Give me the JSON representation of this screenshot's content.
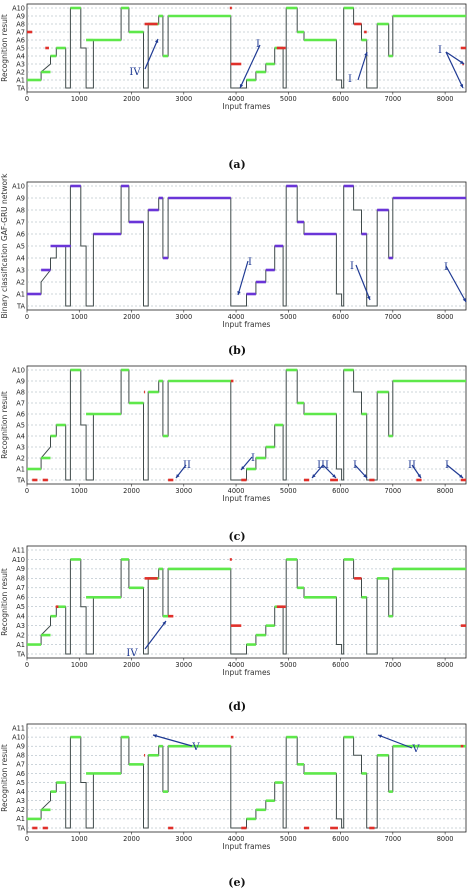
{
  "chart_data": [
    {
      "type": "line",
      "caption": "(a)",
      "ylabel": "Recognition result",
      "xlabel": "Input frames",
      "ylim_labels": [
        "TA",
        "A1",
        "A2",
        "A3",
        "A4",
        "A5",
        "A6",
        "A7",
        "A8",
        "A9",
        "A10"
      ],
      "xticks": [
        0,
        1000,
        2000,
        3000,
        4000,
        5000,
        6000,
        7000,
        8000
      ],
      "xlim": [
        0,
        8400
      ],
      "ground_truth": [
        [
          0,
          1
        ],
        [
          270,
          1
        ],
        [
          270,
          2
        ],
        [
          450,
          3
        ],
        [
          450,
          4
        ],
        [
          560,
          4
        ],
        [
          560,
          5
        ],
        [
          740,
          5
        ],
        [
          740,
          0
        ],
        [
          830,
          0
        ],
        [
          830,
          10
        ],
        [
          1030,
          10
        ],
        [
          1030,
          5
        ],
        [
          1130,
          5
        ],
        [
          1130,
          0
        ],
        [
          1270,
          0
        ],
        [
          1270,
          6
        ],
        [
          1800,
          6
        ],
        [
          1800,
          10
        ],
        [
          1950,
          10
        ],
        [
          1950,
          7
        ],
        [
          2230,
          7
        ],
        [
          2230,
          0
        ],
        [
          2320,
          0
        ],
        [
          2320,
          8
        ],
        [
          2520,
          8
        ],
        [
          2520,
          9
        ],
        [
          2600,
          9
        ],
        [
          2600,
          4
        ],
        [
          2700,
          4
        ],
        [
          2700,
          9
        ],
        [
          3900,
          9
        ],
        [
          3900,
          0
        ],
        [
          4200,
          0
        ],
        [
          4200,
          1
        ],
        [
          4380,
          1
        ],
        [
          4380,
          2
        ],
        [
          4570,
          2
        ],
        [
          4570,
          3
        ],
        [
          4740,
          3
        ],
        [
          4740,
          5
        ],
        [
          4900,
          5
        ],
        [
          4900,
          0
        ],
        [
          4960,
          0
        ],
        [
          4960,
          10
        ],
        [
          5170,
          10
        ],
        [
          5170,
          7
        ],
        [
          5300,
          7
        ],
        [
          5300,
          6
        ],
        [
          5920,
          6
        ],
        [
          5920,
          1
        ],
        [
          6020,
          1
        ],
        [
          6020,
          0
        ],
        [
          6060,
          0
        ],
        [
          6060,
          10
        ],
        [
          6250,
          10
        ],
        [
          6250,
          8
        ],
        [
          6400,
          8
        ],
        [
          6400,
          6
        ],
        [
          6500,
          6
        ],
        [
          6500,
          0
        ],
        [
          6700,
          0
        ],
        [
          6700,
          8
        ],
        [
          6920,
          8
        ],
        [
          6920,
          4
        ],
        [
          7000,
          4
        ],
        [
          7000,
          9
        ],
        [
          8400,
          9
        ]
      ],
      "predicted": [
        [
          0,
          270,
          1
        ],
        [
          270,
          450,
          2
        ],
        [
          450,
          560,
          4
        ],
        [
          560,
          740,
          5
        ],
        [
          830,
          1030,
          10
        ],
        [
          1130,
          1270,
          6
        ],
        [
          1270,
          1800,
          6
        ],
        [
          1800,
          1950,
          10
        ],
        [
          1950,
          2230,
          7
        ],
        [
          2320,
          2520,
          8
        ],
        [
          2520,
          2600,
          9
        ],
        [
          2600,
          2700,
          4
        ],
        [
          2700,
          3900,
          9
        ],
        [
          4200,
          4380,
          1
        ],
        [
          4380,
          4570,
          2
        ],
        [
          4570,
          4740,
          3
        ],
        [
          4740,
          4900,
          5
        ],
        [
          4960,
          5170,
          10
        ],
        [
          5170,
          5300,
          7
        ],
        [
          5300,
          5920,
          6
        ],
        [
          6060,
          6250,
          10
        ],
        [
          6400,
          6500,
          6
        ],
        [
          6700,
          6920,
          8
        ],
        [
          6920,
          7000,
          4
        ],
        [
          7000,
          8400,
          9
        ]
      ],
      "errors": [
        [
          0,
          100,
          7
        ],
        [
          350,
          420,
          5
        ],
        [
          2250,
          2500,
          8
        ],
        [
          3880,
          3920,
          10
        ],
        [
          3900,
          4100,
          3
        ],
        [
          4780,
          4950,
          5
        ],
        [
          6260,
          6400,
          8
        ],
        [
          6450,
          6500,
          7
        ],
        [
          8300,
          8400,
          5
        ],
        [
          8330,
          8360,
          3
        ]
      ],
      "annotations": [
        "IV",
        "I",
        "I",
        "I"
      ]
    },
    {
      "type": "line",
      "caption": "(b)",
      "ylabel": "Binary classification GAF-GRU network",
      "xlabel": "Input frames",
      "ylim_labels": [
        "TA",
        "A1",
        "A2",
        "A3",
        "A4",
        "A5",
        "A6",
        "A7",
        "A8",
        "A9",
        "A10"
      ],
      "xticks": [
        0,
        1000,
        2000,
        3000,
        4000,
        5000,
        6000,
        7000,
        8000
      ],
      "xlim": [
        0,
        8400
      ],
      "predicted_color": "#6a35d8",
      "predicted": [
        [
          0,
          270,
          1
        ],
        [
          270,
          450,
          3
        ],
        [
          450,
          840,
          5
        ],
        [
          830,
          1030,
          10
        ],
        [
          1270,
          1800,
          6
        ],
        [
          1800,
          1950,
          10
        ],
        [
          1950,
          2230,
          7
        ],
        [
          2320,
          2520,
          8
        ],
        [
          2520,
          2600,
          9
        ],
        [
          2600,
          2700,
          4
        ],
        [
          2700,
          3900,
          9
        ],
        [
          4200,
          4380,
          1
        ],
        [
          4380,
          4570,
          2
        ],
        [
          4570,
          4740,
          3
        ],
        [
          4740,
          4900,
          5
        ],
        [
          4960,
          5170,
          10
        ],
        [
          5170,
          5300,
          7
        ],
        [
          5300,
          5920,
          6
        ],
        [
          6060,
          6250,
          10
        ],
        [
          6400,
          6500,
          6
        ],
        [
          6700,
          6920,
          8
        ],
        [
          6920,
          7000,
          4
        ],
        [
          7000,
          8400,
          9
        ]
      ],
      "annotations": [
        "I",
        "I",
        "I"
      ]
    },
    {
      "type": "line",
      "caption": "(c)",
      "ylabel": "Recognition result",
      "xlabel": "Input frames",
      "ylim_labels": [
        "TA",
        "A1",
        "A2",
        "A3",
        "A4",
        "A5",
        "A6",
        "A7",
        "A8",
        "A9",
        "A10"
      ],
      "xticks": [
        0,
        1000,
        2000,
        3000,
        4000,
        5000,
        6000,
        7000,
        8000
      ],
      "xlim": [
        0,
        8400
      ],
      "errors": [
        [
          100,
          200,
          0
        ],
        [
          300,
          400,
          0
        ],
        [
          2700,
          2800,
          0
        ],
        [
          4100,
          4200,
          0
        ],
        [
          5300,
          5400,
          0
        ],
        [
          5800,
          5950,
          0
        ],
        [
          6550,
          6650,
          0
        ],
        [
          7450,
          7550,
          0
        ],
        [
          8300,
          8400,
          0
        ],
        [
          3900,
          3950,
          9
        ],
        [
          2240,
          2260,
          8
        ]
      ],
      "annotations": [
        "II",
        "I",
        "III",
        "I",
        "II",
        "I"
      ]
    },
    {
      "type": "line",
      "caption": "(d)",
      "ylabel": "Recognition result",
      "xlabel": "Input frames",
      "ylim_labels": [
        "TA",
        "A1",
        "A2",
        "A3",
        "A4",
        "A5",
        "A6",
        "A7",
        "A8",
        "A9",
        "A10",
        "A11"
      ],
      "xticks": [
        0,
        1000,
        2000,
        3000,
        4000,
        5000,
        6000,
        7000,
        8000
      ],
      "xlim": [
        0,
        8400
      ],
      "errors": [
        [
          2250,
          2500,
          8
        ],
        [
          3880,
          3920,
          10
        ],
        [
          3900,
          4100,
          3
        ],
        [
          4780,
          4950,
          5
        ],
        [
          6260,
          6400,
          8
        ],
        [
          8300,
          8400,
          3
        ],
        [
          550,
          600,
          5
        ],
        [
          2700,
          2800,
          4
        ]
      ],
      "annotations": [
        "IV"
      ]
    },
    {
      "type": "line",
      "caption": "(e)",
      "ylabel": "Recognition result",
      "xlabel": "Input frames",
      "ylim_labels": [
        "TA",
        "A1",
        "A2",
        "A3",
        "A4",
        "A5",
        "A6",
        "A7",
        "A8",
        "A9",
        "A10",
        "A11"
      ],
      "xticks": [
        0,
        1000,
        2000,
        3000,
        4000,
        5000,
        6000,
        7000,
        8000
      ],
      "xlim": [
        0,
        8400
      ],
      "errors": [
        [
          100,
          200,
          0
        ],
        [
          300,
          400,
          0
        ],
        [
          2700,
          2800,
          0
        ],
        [
          4100,
          4200,
          0
        ],
        [
          5300,
          5400,
          0
        ],
        [
          5800,
          5950,
          0
        ],
        [
          6550,
          6650,
          0
        ],
        [
          3900,
          3950,
          10
        ],
        [
          2240,
          2260,
          8
        ],
        [
          8300,
          8350,
          9
        ]
      ],
      "annotations": [
        "V",
        "V"
      ]
    }
  ],
  "colors": {
    "ground_truth": "#3f4a4a",
    "correct": "#5ee84a",
    "error": "#e0302a",
    "arrow": "#1f3a93",
    "grid": "#9aaab5"
  }
}
